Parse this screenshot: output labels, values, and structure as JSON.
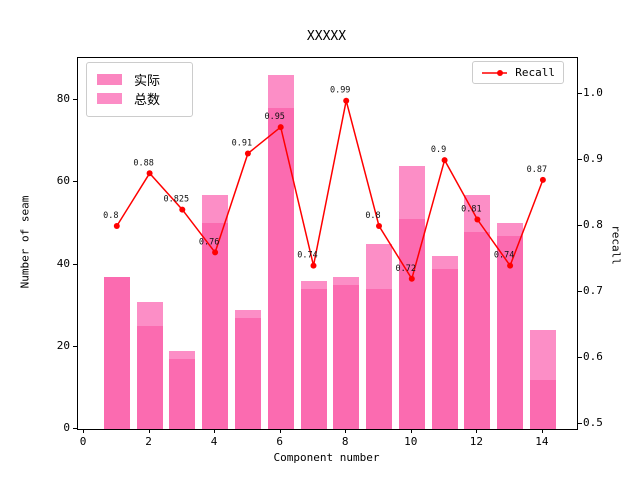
{
  "title": "XXXXX",
  "legend": {
    "bar_items": [
      {
        "label": "实际",
        "color": "#fb86c0"
      },
      {
        "label": "总数",
        "color": "#fc8dc6"
      }
    ],
    "line_item": {
      "label": "Recall",
      "color": "#ff0000"
    }
  },
  "chart_data": {
    "type": "bar+line",
    "title": "XXXXX",
    "xlabel": "Component number",
    "ylabel_left": "Number of seam",
    "ylabel_right": "recall",
    "grid": false,
    "categories": [
      1,
      2,
      3,
      4,
      5,
      6,
      7,
      8,
      9,
      10,
      11,
      12,
      13,
      14
    ],
    "series": [
      {
        "name": "总数",
        "key": "total",
        "type": "bar",
        "axis": "left",
        "color": "#fc8ec6",
        "legend_color": "#fc8dc6",
        "values": [
          37,
          31,
          19,
          57,
          29,
          86,
          36,
          37,
          45,
          64,
          42,
          57,
          50,
          24
        ]
      },
      {
        "name": "实际",
        "key": "actual",
        "type": "bar",
        "axis": "left",
        "color": "#fb6bb0",
        "legend_color": "#fb86c0",
        "values": [
          37,
          25,
          17,
          50,
          27,
          78,
          34,
          35,
          34,
          51,
          39,
          48,
          47,
          12
        ]
      },
      {
        "name": "Recall",
        "key": "recall",
        "type": "line",
        "axis": "right",
        "color": "#ff0000",
        "marker": "circle",
        "values": [
          0.8,
          0.88,
          0.825,
          0.76,
          0.91,
          0.95,
          0.74,
          0.99,
          0.8,
          0.72,
          0.9,
          0.81,
          0.74,
          0.87
        ],
        "point_labels": [
          "0.8",
          "0.88",
          "0.825",
          "0.76",
          "0.91",
          "0.95",
          "0.74",
          "0.99",
          "0.8",
          "0.72",
          "0.9",
          "0.81",
          "0.74",
          "0.87"
        ]
      }
    ],
    "axes": {
      "x": {
        "min": -0.183,
        "max": 15.04,
        "ticks": [
          0,
          2,
          4,
          6,
          8,
          10,
          12,
          14
        ],
        "tick_labels": [
          "0",
          "2",
          "4",
          "6",
          "8",
          "10",
          "12",
          "14"
        ]
      },
      "y_left": {
        "min": 0,
        "max": 90.2,
        "ticks": [
          0,
          20,
          40,
          60,
          80
        ],
        "tick_labels": [
          "0",
          "20",
          "40",
          "60",
          "80"
        ]
      },
      "y_right": {
        "min": 0.4924,
        "max": 1.0547,
        "ticks": [
          0.5,
          0.6,
          0.7,
          0.8,
          0.9,
          1.0
        ],
        "tick_labels": [
          "0.5",
          "0.6",
          "0.7",
          "0.8",
          "0.9",
          "1.0"
        ]
      }
    }
  }
}
